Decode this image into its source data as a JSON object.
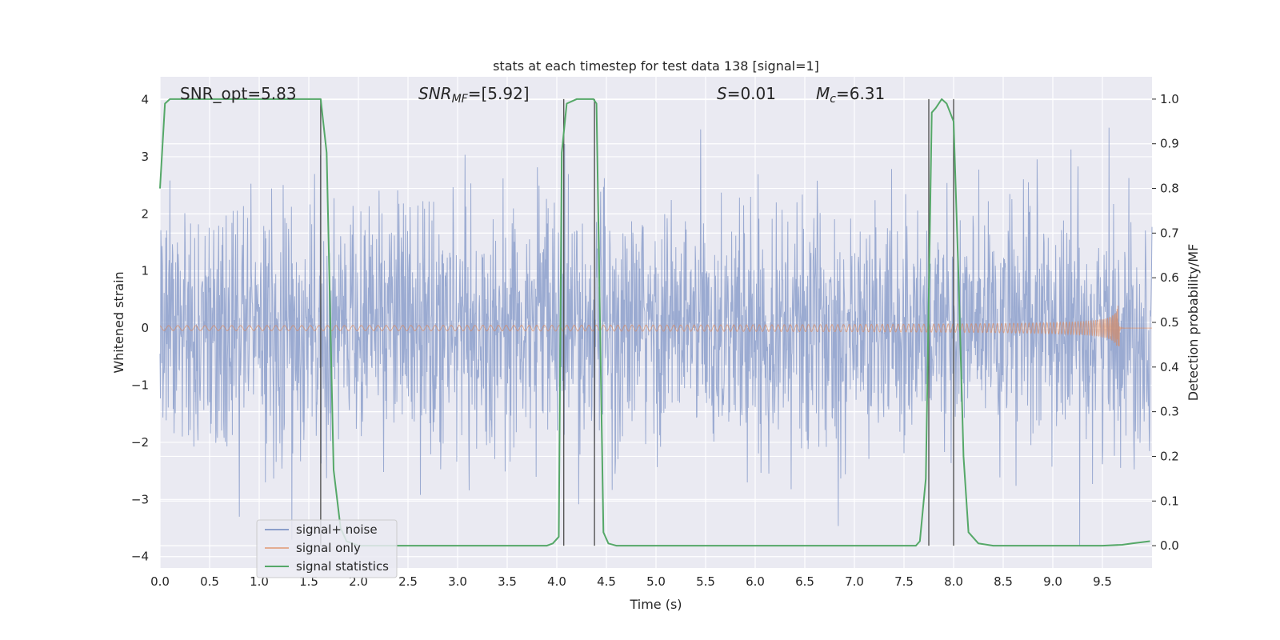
{
  "chart_data": {
    "type": "line",
    "title": "stats at each timestep for test data 138 [signal=1]",
    "xlabel": "Time (s)",
    "ylabel": "Whitened strain",
    "y2label": "Detection probability/MF",
    "xlim": [
      0,
      10
    ],
    "ylim": [
      -4.2,
      4.4
    ],
    "y2lim": [
      -0.05,
      1.05
    ],
    "xticks": [
      0.0,
      0.5,
      1.0,
      1.5,
      2.0,
      2.5,
      3.0,
      3.5,
      4.0,
      4.5,
      5.0,
      5.5,
      6.0,
      6.5,
      7.0,
      7.5,
      8.0,
      8.5,
      9.0,
      9.5
    ],
    "xtick_labels": [
      "0.0",
      "0.5",
      "1.0",
      "1.5",
      "2.0",
      "2.5",
      "3.0",
      "3.5",
      "4.0",
      "4.5",
      "5.0",
      "5.5",
      "6.0",
      "6.5",
      "7.0",
      "7.5",
      "8.0",
      "8.5",
      "9.0",
      "9.5"
    ],
    "yticks": [
      4,
      3,
      2,
      1,
      0,
      -1,
      -2,
      -3,
      -4
    ],
    "ytick_labels": [
      "4",
      "3",
      "2",
      "1",
      "0",
      "−1",
      "−2",
      "−3",
      "−4"
    ],
    "y2ticks": [
      1.0,
      0.9,
      0.8,
      0.7,
      0.6,
      0.5,
      0.4,
      0.3,
      0.2,
      0.1,
      0.0
    ],
    "y2tick_labels": [
      "1.0",
      "0.9",
      "0.8",
      "0.7",
      "0.6",
      "0.5",
      "0.4",
      "0.3",
      "0.2",
      "0.1",
      "0.0"
    ],
    "grid": true,
    "legend_position": "lower-left",
    "annotations": {
      "snr_opt": "SNR_opt=5.83",
      "snr_mf_base": "SNR",
      "snr_mf_sub": "MF",
      "snr_mf_value": "=[5.92]",
      "s_symbol": "S",
      "s_value": "=0.01",
      "mc_symbol": "M",
      "mc_sub": "c",
      "mc_value": "=6.31"
    },
    "vertical_lines_x": [
      1.62,
      4.07,
      4.38,
      7.75,
      8.0
    ],
    "series": [
      {
        "name": "signal+ noise",
        "color": "#8c9fcb",
        "kind": "noise",
        "envelope": [
          -3.8,
          3.7
        ]
      },
      {
        "name": "signal only",
        "color": "#dd8452",
        "kind": "chirp",
        "end_time": 9.67,
        "peak_amplitude": 0.72
      },
      {
        "name": "signal statistics",
        "color": "#55a868",
        "kind": "prob",
        "axis": "right",
        "x": [
          0.0,
          0.05,
          0.1,
          0.2,
          1.4,
          1.55,
          1.62,
          1.68,
          1.75,
          1.82,
          1.88,
          2.0,
          3.9,
          3.96,
          4.02,
          4.05,
          4.1,
          4.2,
          4.3,
          4.37,
          4.4,
          4.47,
          4.52,
          4.6,
          7.5,
          7.62,
          7.66,
          7.72,
          7.78,
          7.82,
          7.88,
          7.93,
          8.0,
          8.05,
          8.1,
          8.15,
          8.25,
          8.4,
          9.0,
          9.5,
          9.7,
          9.8,
          9.98
        ],
        "y": [
          0.8,
          0.99,
          1.0,
          1.0,
          1.0,
          1.0,
          1.0,
          0.88,
          0.17,
          0.04,
          0.01,
          0.0,
          0.0,
          0.005,
          0.02,
          0.88,
          0.99,
          1.0,
          1.0,
          1.0,
          0.99,
          0.03,
          0.005,
          0.0,
          0.0,
          0.0,
          0.01,
          0.15,
          0.97,
          0.98,
          1.0,
          0.99,
          0.95,
          0.6,
          0.2,
          0.03,
          0.005,
          0.0,
          0.0,
          0.0,
          0.002,
          0.005,
          0.01
        ]
      }
    ]
  }
}
